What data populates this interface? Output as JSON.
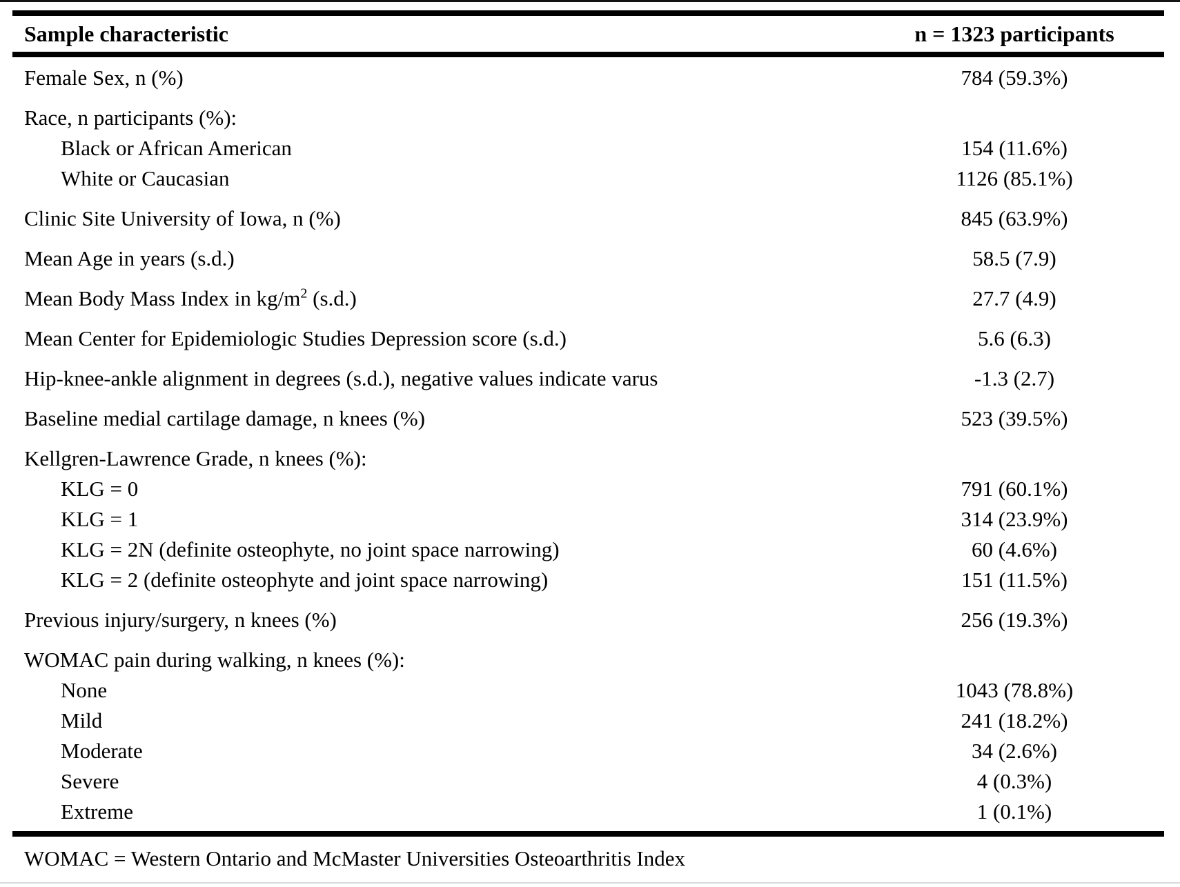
{
  "table": {
    "header": {
      "characteristic": "Sample characteristic",
      "n": "n = 1323 participants"
    },
    "rows": [
      {
        "label": "Female Sex, n (%)",
        "value": "784 (59.3%)"
      },
      {
        "label": "Race, n participants (%):",
        "value": "",
        "children": [
          {
            "label": "Black or African American",
            "value": "154 (11.6%)"
          },
          {
            "label": "White or Caucasian",
            "value": "1126 (85.1%)"
          }
        ]
      },
      {
        "label": "Clinic Site University of Iowa, n (%)",
        "value": "845 (63.9%)"
      },
      {
        "label": "Mean Age in years (s.d.)",
        "value": "58.5 (7.9)"
      },
      {
        "label_pre": "Mean Body Mass Index in kg/m",
        "label_sup": "2",
        "label_post": " (s.d.)",
        "value": "27.7 (4.9)"
      },
      {
        "label": "Mean Center for Epidemiologic Studies Depression score (s.d.)",
        "value": "5.6 (6.3)"
      },
      {
        "label": "Hip-knee-ankle alignment in degrees (s.d.), negative values indicate varus",
        "value": "-1.3 (2.7)"
      },
      {
        "label": "Baseline medial cartilage damage, n knees (%)",
        "value": "523 (39.5%)"
      },
      {
        "label": "Kellgren-Lawrence Grade, n knees (%):",
        "value": "",
        "children": [
          {
            "label": "KLG = 0",
            "value": "791 (60.1%)"
          },
          {
            "label": "KLG = 1",
            "value": "314 (23.9%)"
          },
          {
            "label": "KLG = 2N (definite osteophyte, no joint space narrowing)",
            "value": "60 (4.6%)"
          },
          {
            "label": "KLG = 2 (definite osteophyte and joint space narrowing)",
            "value": "151 (11.5%)"
          }
        ]
      },
      {
        "label": "Previous injury/surgery, n knees (%)",
        "value": "256 (19.3%)"
      },
      {
        "label": "WOMAC pain during walking, n knees (%):",
        "value": "",
        "children": [
          {
            "label": "None",
            "value": "1043 (78.8%)"
          },
          {
            "label": "Mild",
            "value": "241 (18.2%)"
          },
          {
            "label": "Moderate",
            "value": "34 (2.6%)"
          },
          {
            "label": "Severe",
            "value": "4 (0.3%)"
          },
          {
            "label": "Extreme",
            "value": "1 (0.1%)"
          }
        ]
      }
    ],
    "footnote": "WOMAC = Western Ontario and McMaster Universities Osteoarthritis Index"
  }
}
